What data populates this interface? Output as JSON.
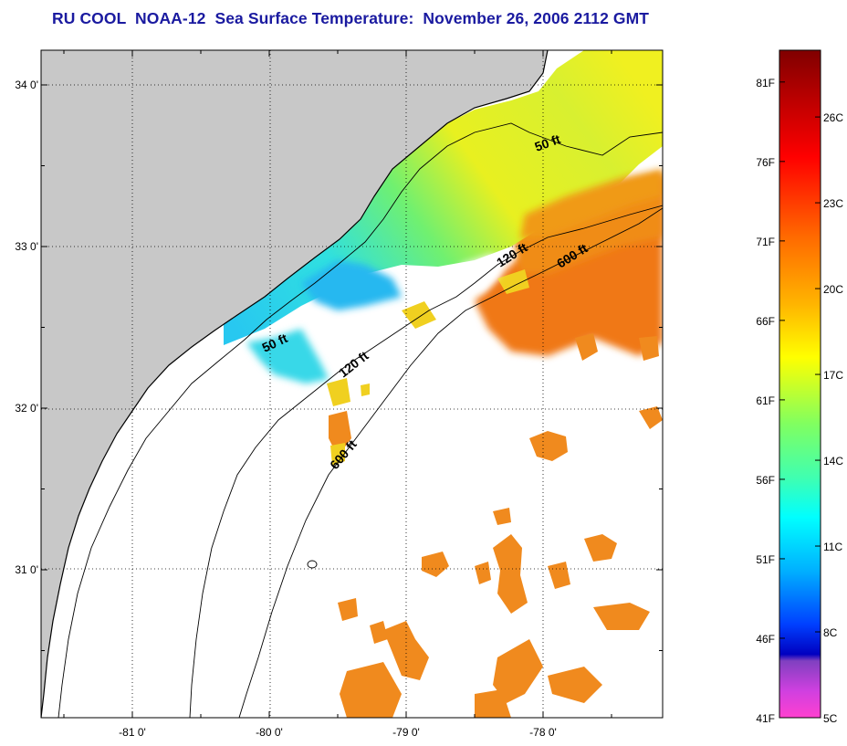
{
  "title": "RU COOL  NOAA-12  Sea Surface Temperature:  November 26, 2006 2112 GMT",
  "map": {
    "lat_ticks": [
      "34 0'",
      "33 0'",
      "32 0'",
      "31 0'"
    ],
    "lon_ticks": [
      "-81 0'",
      "-80 0'",
      "-79 0'",
      "-78 0'"
    ],
    "lat_values": [
      34,
      33,
      32,
      31
    ],
    "lon_values": [
      -81,
      -80,
      -79,
      -78
    ],
    "lon_range": [
      -81.7,
      -77.15
    ],
    "lat_range": [
      30.2,
      34.2
    ],
    "grid": "dotted",
    "contours": [
      {
        "label": "50 ft",
        "depth_ft": 50
      },
      {
        "label": "50 ft",
        "depth_ft": 50
      },
      {
        "label": "120 ft",
        "depth_ft": 120
      },
      {
        "label": "120 ft",
        "depth_ft": 120
      },
      {
        "label": "600 ft",
        "depth_ft": 600
      },
      {
        "label": "600 ft",
        "depth_ft": 600
      }
    ],
    "colors": {
      "land": "#c8c8c8",
      "no_data": "#ffffff",
      "coastline": "#000000"
    }
  },
  "colorbar": {
    "f_labels": [
      "81F",
      "76F",
      "71F",
      "66F",
      "61F",
      "56F",
      "51F",
      "46F",
      "41F"
    ],
    "c_labels": [
      "26C",
      "23C",
      "20C",
      "17C",
      "14C",
      "11C",
      "8C",
      "5C"
    ],
    "range_f": [
      41,
      83
    ]
  }
}
